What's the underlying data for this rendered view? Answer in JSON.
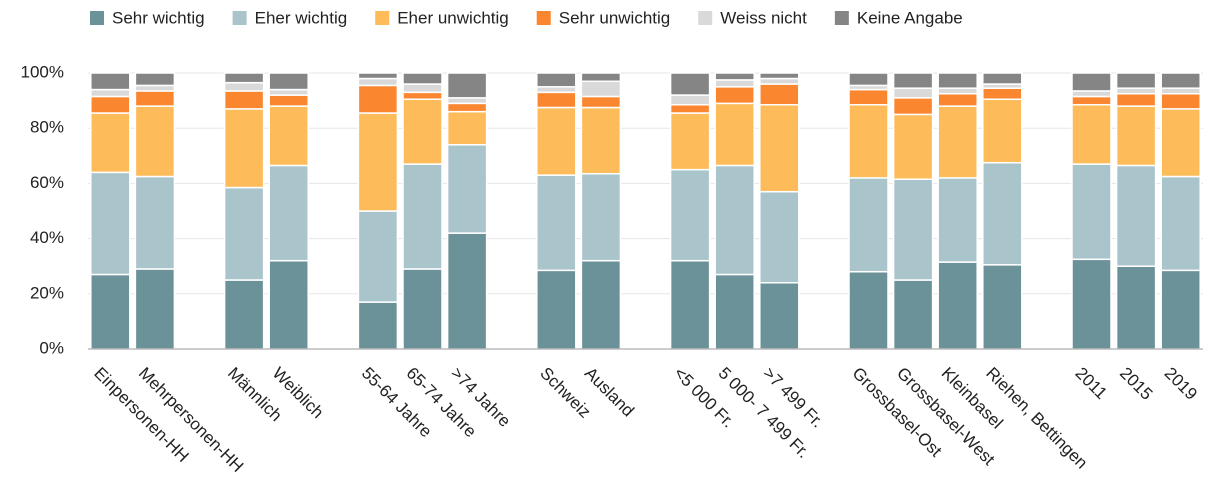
{
  "chart_data": {
    "type": "stacked_bar",
    "categories": [
      "Einpersonen-HH",
      "Mehrpersonen-HH",
      null,
      "Männlich",
      "Weiblich",
      null,
      "55-64 Jahre",
      "65-74 Jahre",
      ">74 Jahre",
      null,
      "Schweiz",
      "Ausland",
      null,
      "<5 000 Fr.",
      "5 000- 7 499 Fr.",
      ">7 499 Fr.",
      null,
      "Grossbasel-Ost",
      "Grossbasel-West",
      "Kleinbasel",
      "Riehen, Bettingen",
      null,
      "2011",
      "2015",
      "2019"
    ],
    "series": [
      {
        "name": "Sehr wichtig",
        "color": "#6a9298",
        "values": [
          27,
          29,
          null,
          25,
          32,
          null,
          17,
          29,
          42,
          null,
          28.5,
          32,
          null,
          32,
          27,
          24,
          null,
          28,
          25,
          31.5,
          30.5,
          null,
          32.5,
          30,
          28.5
        ]
      },
      {
        "name": "Eher wichtig",
        "color": "#a9c4ca",
        "values": [
          37,
          33.5,
          null,
          33.5,
          34.5,
          null,
          33,
          38,
          32,
          null,
          34.5,
          31.5,
          null,
          33,
          39.5,
          33,
          null,
          34,
          36.5,
          30.5,
          37,
          null,
          34.5,
          36.5,
          34
        ]
      },
      {
        "name": "Eher unwichtig",
        "color": "#fdbb5a",
        "values": [
          21.5,
          25.5,
          null,
          28.5,
          21.5,
          null,
          35.5,
          23.5,
          12,
          null,
          24.5,
          24,
          null,
          20.5,
          22.5,
          31.5,
          null,
          26.5,
          23.5,
          26,
          23,
          null,
          21.5,
          21.5,
          24.5
        ]
      },
      {
        "name": "Sehr unwichtig",
        "color": "#fb8630",
        "values": [
          6,
          5.5,
          null,
          6.5,
          4,
          null,
          10,
          2.5,
          3,
          null,
          5.5,
          4,
          null,
          3,
          6,
          7.5,
          null,
          5.5,
          6,
          4.5,
          4,
          null,
          3,
          4.5,
          5.5
        ]
      },
      {
        "name": "Weiss nicht",
        "color": "#d9d9d9",
        "values": [
          2.5,
          2,
          null,
          3,
          2,
          null,
          2.5,
          3,
          2,
          null,
          2,
          5.5,
          null,
          3.5,
          2.5,
          2,
          null,
          1.5,
          3.5,
          2,
          1.5,
          null,
          2,
          2,
          2
        ]
      },
      {
        "name": "Keine Angabe",
        "color": "#858585",
        "values": [
          6,
          4.5,
          null,
          3.5,
          6,
          null,
          2,
          4,
          9,
          null,
          5,
          3,
          null,
          8,
          2.5,
          2,
          null,
          4.5,
          5.5,
          5.5,
          4,
          null,
          6.5,
          5.5,
          5.5
        ]
      }
    ],
    "ylim": [
      0,
      100
    ],
    "yticks": [
      {
        "value": 0,
        "label": "0%"
      },
      {
        "value": 20,
        "label": "20%"
      },
      {
        "value": 40,
        "label": "40%"
      },
      {
        "value": 60,
        "label": "60%"
      },
      {
        "value": 80,
        "label": "80%"
      },
      {
        "value": 100,
        "label": "100%"
      }
    ],
    "grid": true,
    "legend": "top"
  }
}
